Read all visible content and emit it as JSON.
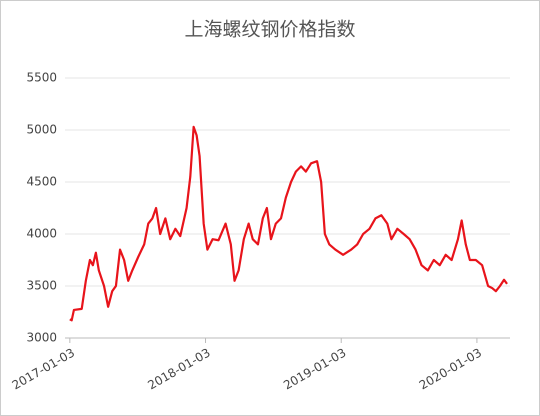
{
  "chart_data": {
    "type": "line",
    "title": "上海螺纹钢价格指数",
    "x": [
      "2017-01-03",
      "2017-01-08",
      "2017-01-14",
      "2017-02-04",
      "2017-02-15",
      "2017-02-26",
      "2017-03-06",
      "2017-03-14",
      "2017-03-22",
      "2017-04-05",
      "2017-04-16",
      "2017-04-27",
      "2017-05-07",
      "2017-05-18",
      "2017-05-29",
      "2017-06-09",
      "2017-06-20",
      "2017-07-06",
      "2017-07-22",
      "2017-08-02",
      "2017-08-13",
      "2017-08-23",
      "2017-09-03",
      "2017-09-17",
      "2017-09-30",
      "2017-10-14",
      "2017-10-27",
      "2017-11-13",
      "2017-11-23",
      "2017-12-02",
      "2017-12-10",
      "2017-12-18",
      "2017-12-29",
      "2018-01-08",
      "2018-01-22",
      "2018-02-07",
      "2018-02-26",
      "2018-03-12",
      "2018-03-22",
      "2018-04-02",
      "2018-04-16",
      "2018-04-29",
      "2018-05-10",
      "2018-05-24",
      "2018-06-06",
      "2018-06-17",
      "2018-06-28",
      "2018-07-11",
      "2018-07-25",
      "2018-08-07",
      "2018-08-21",
      "2018-09-03",
      "2018-09-17",
      "2018-09-30",
      "2018-10-14",
      "2018-10-30",
      "2018-11-10",
      "2018-11-20",
      "2018-12-02",
      "2018-12-18",
      "2019-01-08",
      "2019-01-30",
      "2019-02-15",
      "2019-03-03",
      "2019-03-20",
      "2019-04-05",
      "2019-04-21",
      "2019-05-07",
      "2019-05-18",
      "2019-06-03",
      "2019-06-20",
      "2019-07-06",
      "2019-07-22",
      "2019-08-07",
      "2019-08-24",
      "2019-09-09",
      "2019-09-25",
      "2019-10-11",
      "2019-10-27",
      "2019-11-13",
      "2019-11-23",
      "2019-12-04",
      "2019-12-15",
      "2019-12-31",
      "2020-01-17",
      "2020-02-02",
      "2020-02-13",
      "2020-02-23",
      "2020-03-05",
      "2020-03-16",
      "2020-03-24"
    ],
    "series": [
      {
        "color": "#e8141b",
        "values": [
          3180,
          3170,
          3270,
          3280,
          3550,
          3750,
          3700,
          3820,
          3650,
          3500,
          3300,
          3450,
          3500,
          3850,
          3750,
          3550,
          3650,
          3780,
          3900,
          4100,
          4150,
          4250,
          4000,
          4150,
          3950,
          4050,
          3980,
          4250,
          4550,
          5030,
          4950,
          4750,
          4100,
          3850,
          3950,
          3940,
          4100,
          3900,
          3550,
          3650,
          3950,
          4100,
          3950,
          3900,
          4150,
          4250,
          3950,
          4100,
          4150,
          4350,
          4500,
          4600,
          4650,
          4600,
          4680,
          4700,
          4500,
          4000,
          3900,
          3850,
          3800,
          3850,
          3900,
          4000,
          4050,
          4150,
          4180,
          4100,
          3950,
          4050,
          4000,
          3950,
          3850,
          3700,
          3650,
          3750,
          3700,
          3800,
          3750,
          3950,
          4130,
          3900,
          3750,
          3750,
          3700,
          3500,
          3480,
          3450,
          3500,
          3560,
          3520
        ]
      }
    ],
    "xlim": [
      "2016-12-21",
      "2020-04-01"
    ],
    "xticks": [
      "2017-01-03",
      "2018-01-03",
      "2019-01-03",
      "2020-01-03"
    ],
    "ylim": [
      3000,
      5500
    ],
    "yticks": [
      3000,
      3500,
      4000,
      4500,
      5000,
      5500
    ],
    "grid": true
  }
}
